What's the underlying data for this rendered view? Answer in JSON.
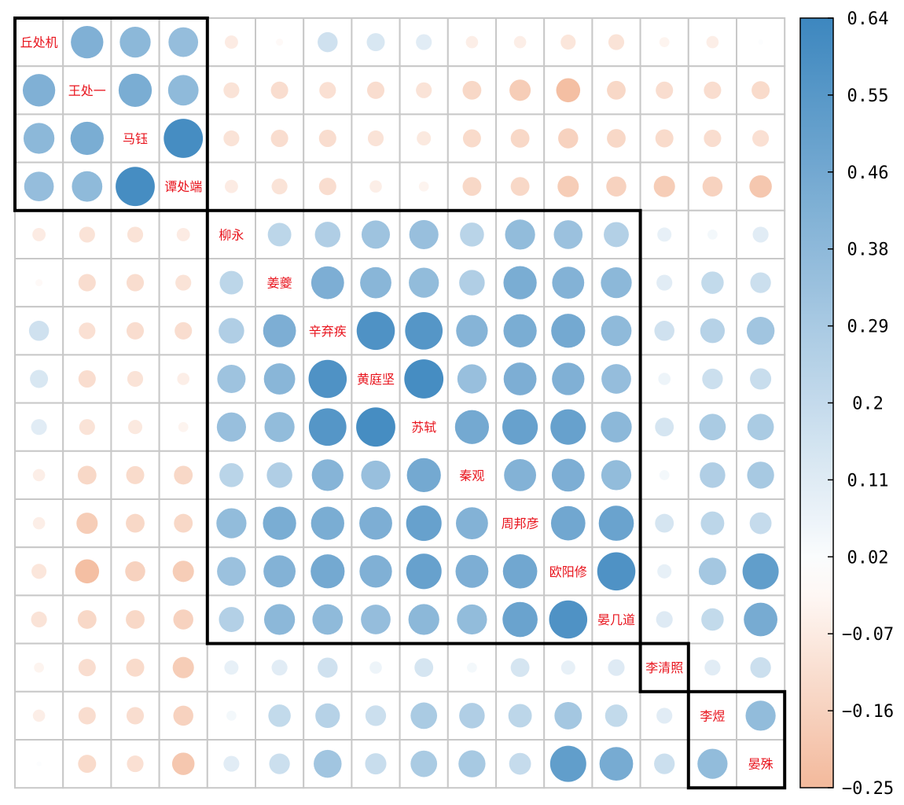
{
  "chart_data": {
    "type": "heatmap",
    "title": "",
    "xlabel": "",
    "ylabel": "",
    "labels": [
      "丘处机",
      "王处一",
      "马钰",
      "谭处端",
      "柳永",
      "姜夔",
      "辛弃疾",
      "黄庭坚",
      "苏轼",
      "秦观",
      "周邦彦",
      "欧阳修",
      "晏几道",
      "李清照",
      "李煜",
      "晏殊"
    ],
    "matrix": [
      [
        1.0,
        0.42,
        0.38,
        0.35,
        -0.07,
        -0.02,
        0.16,
        0.13,
        0.1,
        -0.06,
        -0.06,
        -0.09,
        -0.1,
        -0.04,
        -0.06,
        0.01
      ],
      [
        0.42,
        1.0,
        0.44,
        0.37,
        -0.1,
        -0.12,
        -0.11,
        -0.12,
        -0.1,
        -0.14,
        -0.18,
        -0.23,
        -0.14,
        -0.12,
        -0.12,
        -0.13
      ],
      [
        0.38,
        0.44,
        1.0,
        0.61,
        -0.1,
        -0.12,
        -0.12,
        -0.1,
        -0.08,
        -0.13,
        -0.14,
        -0.16,
        -0.14,
        -0.13,
        -0.12,
        -0.11
      ],
      [
        0.35,
        0.37,
        0.61,
        1.0,
        -0.07,
        -0.1,
        -0.12,
        -0.06,
        -0.04,
        -0.14,
        -0.14,
        -0.18,
        -0.16,
        -0.18,
        -0.16,
        -0.2
      ],
      [
        -0.07,
        -0.1,
        -0.1,
        -0.07,
        1.0,
        0.22,
        0.26,
        0.32,
        0.34,
        0.23,
        0.36,
        0.33,
        0.25,
        0.08,
        0.04,
        0.1
      ],
      [
        -0.02,
        -0.12,
        -0.12,
        -0.1,
        0.22,
        1.0,
        0.43,
        0.39,
        0.36,
        0.26,
        0.44,
        0.41,
        0.38,
        0.1,
        0.2,
        0.17
      ],
      [
        0.16,
        -0.11,
        -0.12,
        -0.12,
        0.26,
        0.43,
        1.0,
        0.58,
        0.56,
        0.4,
        0.44,
        0.46,
        0.37,
        0.16,
        0.24,
        0.31
      ],
      [
        0.13,
        -0.12,
        -0.1,
        -0.06,
        0.32,
        0.39,
        0.58,
        1.0,
        0.61,
        0.34,
        0.43,
        0.42,
        0.35,
        0.06,
        0.17,
        0.18
      ],
      [
        0.1,
        -0.1,
        -0.08,
        -0.04,
        0.34,
        0.36,
        0.56,
        0.61,
        1.0,
        0.46,
        0.5,
        0.5,
        0.38,
        0.14,
        0.28,
        0.28
      ],
      [
        -0.06,
        -0.14,
        -0.13,
        -0.14,
        0.23,
        0.26,
        0.4,
        0.34,
        0.46,
        1.0,
        0.41,
        0.43,
        0.36,
        0.04,
        0.26,
        0.29
      ],
      [
        -0.06,
        -0.18,
        -0.14,
        -0.14,
        0.36,
        0.44,
        0.44,
        0.43,
        0.5,
        0.41,
        1.0,
        0.47,
        0.49,
        0.14,
        0.22,
        0.19
      ],
      [
        -0.09,
        -0.23,
        -0.16,
        -0.18,
        0.33,
        0.41,
        0.46,
        0.42,
        0.5,
        0.43,
        0.47,
        1.0,
        0.58,
        0.08,
        0.3,
        0.52
      ],
      [
        -0.1,
        -0.14,
        -0.14,
        -0.16,
        0.25,
        0.38,
        0.37,
        0.35,
        0.38,
        0.36,
        0.49,
        0.58,
        1.0,
        0.11,
        0.2,
        0.45
      ],
      [
        -0.04,
        -0.12,
        -0.13,
        -0.18,
        0.08,
        0.1,
        0.16,
        0.06,
        0.14,
        0.04,
        0.14,
        0.08,
        0.11,
        1.0,
        0.1,
        0.17
      ],
      [
        -0.06,
        -0.12,
        -0.12,
        -0.16,
        0.04,
        0.2,
        0.24,
        0.17,
        0.28,
        0.26,
        0.22,
        0.3,
        0.2,
        0.1,
        1.0,
        0.36
      ],
      [
        0.01,
        -0.13,
        -0.11,
        -0.2,
        0.1,
        0.17,
        0.31,
        0.18,
        0.28,
        0.29,
        0.19,
        0.52,
        0.45,
        0.17,
        0.36,
        1.0
      ]
    ],
    "clusters": [
      {
        "start": 0,
        "end": 3
      },
      {
        "start": 4,
        "end": 12
      },
      {
        "start": 13,
        "end": 13
      },
      {
        "start": 14,
        "end": 15
      }
    ],
    "colorbar": {
      "min": -0.25,
      "max": 0.64,
      "ticks": [
        "0.64",
        "0.55",
        "0.46",
        "0.38",
        "0.29",
        "0.2",
        "0.11",
        "0.02",
        "−0.07",
        "−0.16",
        "−0.25"
      ]
    },
    "colors": {
      "positive": "#3d87bf",
      "negative": "#f3b99b",
      "zero": "#ffffff",
      "label": "#e8131c",
      "grid": "#c8c8c8",
      "cluster_border": "#000000"
    }
  }
}
